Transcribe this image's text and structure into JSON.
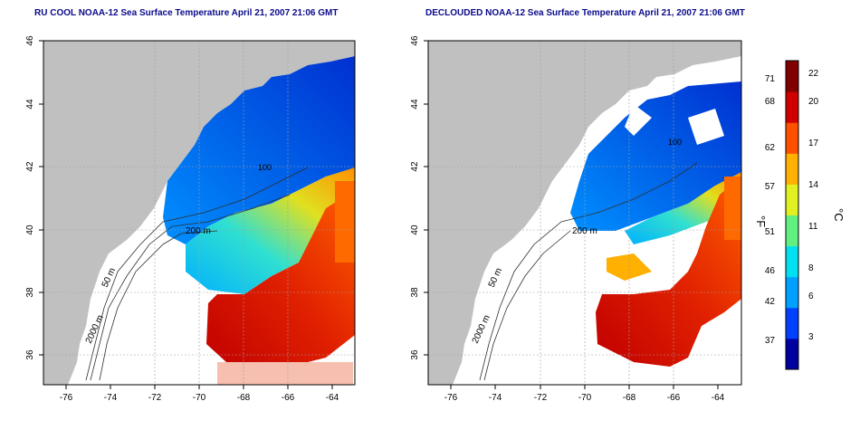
{
  "titles": {
    "left": "RU COOL NOAA-12 Sea Surface Temperature April 21, 2007 21:06 GMT",
    "right": "DECLOUDED NOAA-12 Sea Surface Temperature April 21, 2007 21:06 GMT"
  },
  "axes": {
    "lon_ticks": [
      "-76",
      "-74",
      "-72",
      "-70",
      "-68",
      "-66",
      "-64"
    ],
    "lat_ticks": [
      "46",
      "44",
      "42",
      "40",
      "38",
      "36"
    ]
  },
  "contours": {
    "c50": "50 m",
    "c200": "200 m",
    "c100": "100",
    "c2000": "2000 m"
  },
  "colorbar": {
    "fahrenheit_ticks": [
      "71",
      "68",
      "62",
      "57",
      "51",
      "46",
      "42",
      "37"
    ],
    "celsius_ticks": [
      "22",
      "20",
      "17",
      "14",
      "11",
      "8",
      "6",
      "3"
    ],
    "unit_f": "°F",
    "unit_c": "°C",
    "colors": [
      "#0000a0",
      "#0040ff",
      "#00a0ff",
      "#00e0f0",
      "#60f080",
      "#e0f020",
      "#ffb000",
      "#ff5000",
      "#d00000",
      "#800000"
    ]
  }
}
